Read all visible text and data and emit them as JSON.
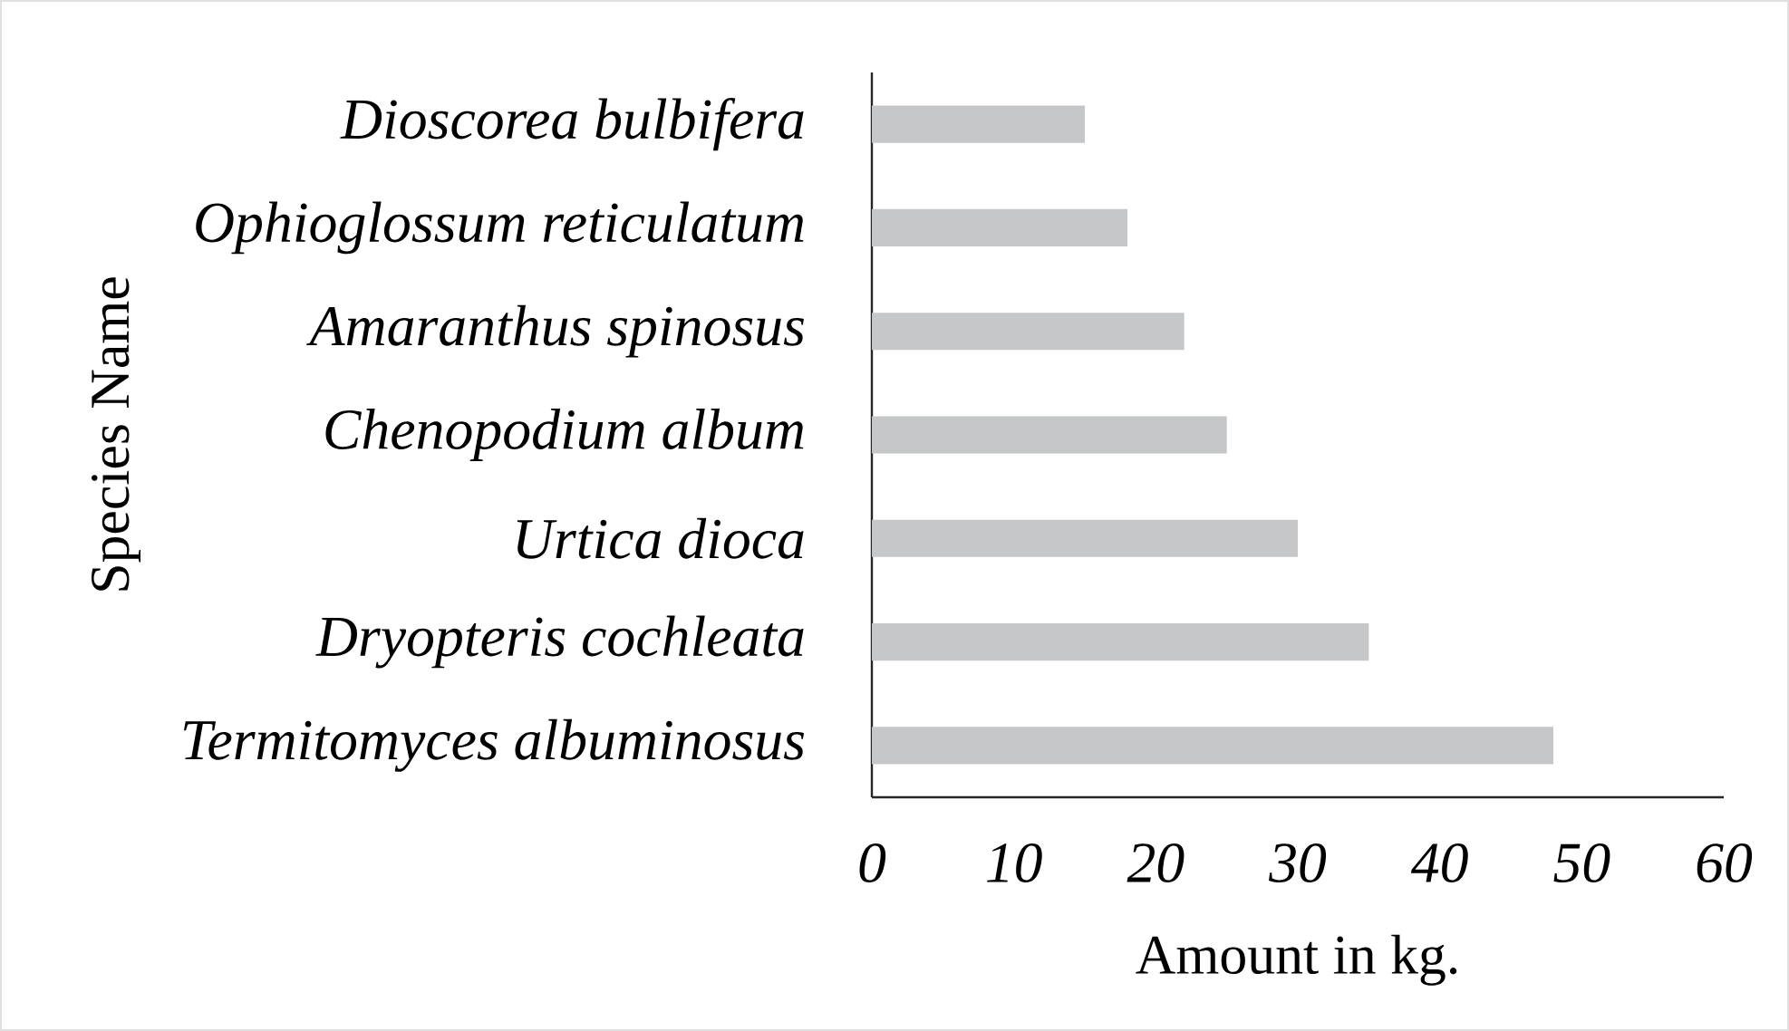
{
  "chart_data": {
    "type": "bar",
    "orientation": "horizontal",
    "categories": [
      "*Dioscorea bulbifera*",
      "*Ophioglossum reticulatum*",
      "*Amaranthus spinosus*",
      "*Chenopodium album*",
      "*Urtica dioca*",
      "*Dryopteris cochleata*",
      "*Termitomyces albuminosus*"
    ],
    "values": [
      15,
      18,
      22,
      25,
      30,
      35,
      48
    ],
    "color": "#c6c7c8",
    "xlabel": "Amount in kg.",
    "ylabel": "Species Name",
    "xlim": [
      0,
      60
    ],
    "xticks": [
      0,
      10,
      20,
      30,
      40,
      50,
      60
    ]
  }
}
